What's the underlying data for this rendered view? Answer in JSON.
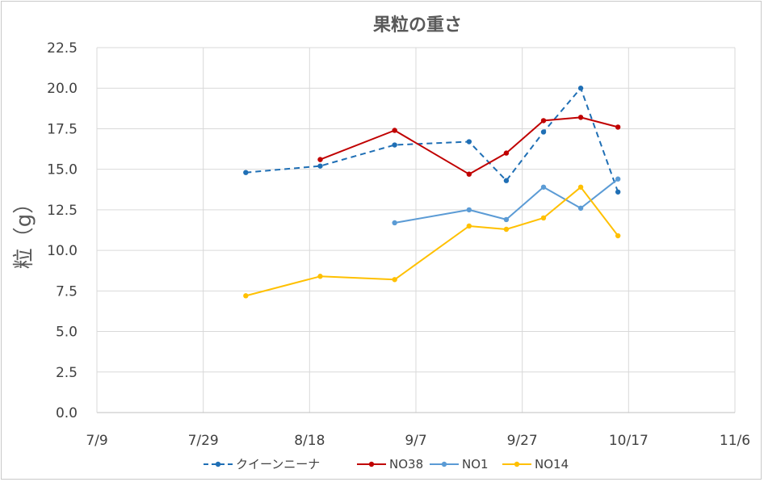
{
  "chart_data": {
    "type": "line",
    "title": "果粒の重さ",
    "xlabel": "",
    "ylabel": "粒（g）",
    "x_ticks": [
      "7/9",
      "7/29",
      "8/18",
      "9/7",
      "9/27",
      "10/17",
      "11/6"
    ],
    "x_range": [
      "7/9",
      "11/6"
    ],
    "ylim": [
      0,
      22.5
    ],
    "y_step": 2.5,
    "y_tick_labels": [
      "0.0",
      "2.5",
      "5.0",
      "7.5",
      "10.0",
      "12.5",
      "15.0",
      "17.5",
      "20.0",
      "22.5"
    ],
    "grid": true,
    "legend_position": "bottom",
    "series": [
      {
        "name": "クイーンニーナ",
        "color": "#1f6fb5",
        "dash": true,
        "points": [
          [
            "8/6",
            14.8
          ],
          [
            "8/20",
            15.2
          ],
          [
            "9/3",
            16.5
          ],
          [
            "9/17",
            16.7
          ],
          [
            "9/24",
            14.3
          ],
          [
            "10/1",
            17.3
          ],
          [
            "10/8",
            20.0
          ],
          [
            "10/15",
            13.6
          ]
        ]
      },
      {
        "name": "NO38",
        "color": "#c00000",
        "dash": false,
        "points": [
          [
            "8/20",
            15.6
          ],
          [
            "9/3",
            17.4
          ],
          [
            "9/17",
            14.7
          ],
          [
            "9/24",
            16.0
          ],
          [
            "10/1",
            18.0
          ],
          [
            "10/8",
            18.2
          ],
          [
            "10/15",
            17.6
          ]
        ]
      },
      {
        "name": "NO1",
        "color": "#5b9bd5",
        "dash": false,
        "points": [
          [
            "9/3",
            11.7
          ],
          [
            "9/17",
            12.5
          ],
          [
            "9/24",
            11.9
          ],
          [
            "10/1",
            13.9
          ],
          [
            "10/8",
            12.6
          ],
          [
            "10/15",
            14.4
          ]
        ]
      },
      {
        "name": "NO14",
        "color": "#ffc000",
        "dash": false,
        "points": [
          [
            "8/6",
            7.2
          ],
          [
            "8/20",
            8.4
          ],
          [
            "9/3",
            8.2
          ],
          [
            "9/17",
            11.5
          ],
          [
            "9/24",
            11.3
          ],
          [
            "10/1",
            12.0
          ],
          [
            "10/8",
            13.9
          ],
          [
            "10/15",
            10.9
          ]
        ]
      }
    ]
  }
}
